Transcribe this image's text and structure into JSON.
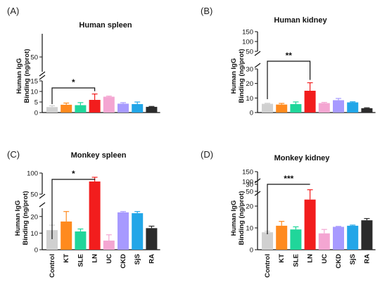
{
  "categories": [
    "Control",
    "KT",
    "SLE",
    "LN",
    "UC",
    "CKD",
    "SjS",
    "RA"
  ],
  "colors": {
    "Control": "#d0d0d0",
    "KT": "#ff8a1e",
    "SLE": "#20d69a",
    "LN": "#f21d1d",
    "UC": "#f4a6d2",
    "CKD": "#a79aff",
    "SjS": "#22a6e8",
    "RA": "#2b2b2b"
  },
  "panels": [
    {
      "label": "(A)",
      "title": "Human spleen",
      "ylabel_line1": "Human IgG",
      "ylabel_line2": "Binding (ng/prot)",
      "lower_ticks": [
        "0",
        "5",
        "10",
        "15"
      ],
      "upper_ticks": [
        "50"
      ],
      "show_categories": false,
      "significance": {
        "from": "Control",
        "to": "LN",
        "text": "*"
      },
      "chart_data": {
        "type": "bar",
        "title": "Human spleen",
        "ylabel": "Human IgG Binding (ng/prot)",
        "categories": [
          "Control",
          "KT",
          "SLE",
          "LN",
          "UC",
          "CKD",
          "SjS",
          "RA"
        ],
        "values": [
          2.6,
          3.7,
          3.5,
          6.0,
          7.5,
          4.2,
          4.0,
          2.7
        ],
        "errors": [
          0.6,
          0.8,
          1.2,
          2.8,
          0.3,
          0.5,
          1.0,
          0.2
        ],
        "lower_ylim": [
          0,
          15
        ],
        "upper_ylim": [
          15,
          50
        ]
      }
    },
    {
      "label": "(B)",
      "title": "Human kidney",
      "ylabel_line1": "Human IgG",
      "ylabel_line2": "Binding (ng/prot)",
      "lower_ticks": [
        "0",
        "10",
        "20",
        "30"
      ],
      "upper_ticks": [
        "50",
        "100",
        "150"
      ],
      "show_categories": false,
      "significance": {
        "from": "Control",
        "to": "LN",
        "text": "**"
      },
      "chart_data": {
        "type": "bar",
        "title": "Human kidney",
        "ylabel": "Human IgG Binding (ng/prot)",
        "categories": [
          "Control",
          "KT",
          "SLE",
          "LN",
          "UC",
          "CKD",
          "SjS",
          "RA"
        ],
        "values": [
          6.0,
          5.5,
          5.8,
          15.0,
          6.5,
          8.5,
          7.0,
          3.0
        ],
        "errors": [
          0.4,
          0.8,
          1.5,
          5.5,
          0.5,
          1.2,
          0.4,
          0.3
        ],
        "lower_ylim": [
          0,
          30
        ],
        "upper_ylim": [
          30,
          150
        ]
      }
    },
    {
      "label": "(C)",
      "title": "Monkey spleen",
      "ylabel_line1": "Human IgG",
      "ylabel_line2": "Binding (ng/prot)",
      "lower_ticks": [
        "0",
        "10",
        "20"
      ],
      "upper_ticks": [
        "50",
        "100"
      ],
      "show_categories": true,
      "significance": {
        "from": "Control",
        "to": "LN",
        "text": "*"
      },
      "chart_data": {
        "type": "bar",
        "title": "Monkey spleen",
        "ylabel": "Human IgG Binding (ng/prot)",
        "categories": [
          "Control",
          "KT",
          "SLE",
          "LN",
          "UC",
          "CKD",
          "SjS",
          "RA"
        ],
        "values": [
          11.8,
          17.0,
          11.0,
          70,
          5.5,
          22.5,
          22.0,
          13.0
        ],
        "errors": [
          3.0,
          6.0,
          1.5,
          15,
          3.5,
          0.5,
          1.0,
          1.2
        ],
        "lower_ylim": [
          0,
          25
        ],
        "upper_ylim": [
          25,
          100
        ]
      }
    },
    {
      "label": "(D)",
      "title": "Monkey kidney",
      "ylabel_line1": "Human IgG",
      "ylabel_line2": "Binding (ng/prot)",
      "lower_ticks": [
        "0",
        "10",
        "20",
        "30"
      ],
      "upper_ticks": [
        "50",
        "100",
        "150"
      ],
      "show_categories": true,
      "significance": {
        "from": "Control",
        "to": "LN",
        "text": "***"
      },
      "chart_data": {
        "type": "bar",
        "title": "Monkey kidney",
        "ylabel": "Human IgG Binding (ng/prot)",
        "categories": [
          "Control",
          "KT",
          "SLE",
          "LN",
          "UC",
          "CKD",
          "SjS",
          "RA"
        ],
        "values": [
          8.0,
          11.0,
          9.3,
          23.0,
          7.5,
          10.5,
          11.0,
          13.5
        ],
        "errors": [
          0.5,
          2.0,
          1.2,
          4.5,
          1.8,
          0.2,
          0.3,
          0.8
        ],
        "lower_ylim": [
          0,
          30
        ],
        "upper_ylim": [
          30,
          150
        ]
      }
    }
  ]
}
